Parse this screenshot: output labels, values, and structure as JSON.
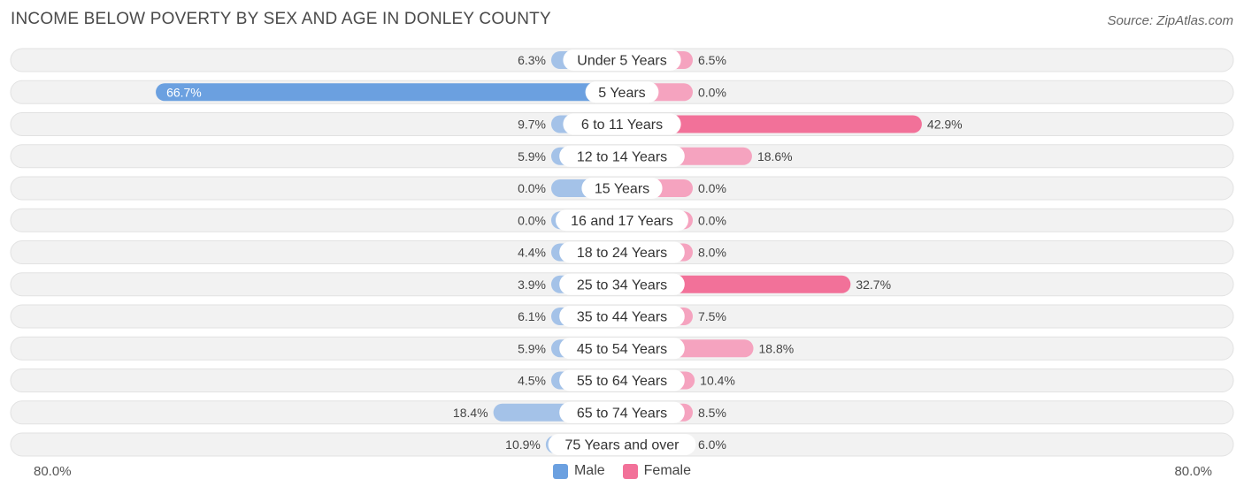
{
  "chart_data": {
    "type": "bar",
    "orientation": "horizontal-diverging",
    "title": "INCOME BELOW POVERTY BY SEX AND AGE IN DONLEY COUNTY",
    "source": "Source: ZipAtlas.com",
    "axis_min_label": "80.0%",
    "axis_max_label": "80.0%",
    "xlim": [
      -80,
      80
    ],
    "categories": [
      "Under 5 Years",
      "5 Years",
      "6 to 11 Years",
      "12 to 14 Years",
      "15 Years",
      "16 and 17 Years",
      "18 to 24 Years",
      "25 to 34 Years",
      "35 to 44 Years",
      "45 to 54 Years",
      "55 to 64 Years",
      "65 to 74 Years",
      "75 Years and over"
    ],
    "series": [
      {
        "name": "Male",
        "color": "#a4c2e8",
        "strong_color": "#6ba0e0",
        "values": [
          6.3,
          66.7,
          9.7,
          5.9,
          0.0,
          0.0,
          4.4,
          3.9,
          6.1,
          5.9,
          4.5,
          18.4,
          10.9
        ],
        "labels": [
          "6.3%",
          "66.7%",
          "9.7%",
          "5.9%",
          "0.0%",
          "0.0%",
          "4.4%",
          "3.9%",
          "6.1%",
          "5.9%",
          "4.5%",
          "18.4%",
          "10.9%"
        ]
      },
      {
        "name": "Female",
        "color": "#f5a3bf",
        "strong_color": "#f27199",
        "values": [
          6.5,
          0.0,
          42.9,
          18.6,
          0.0,
          0.0,
          8.0,
          32.7,
          7.5,
          18.8,
          10.4,
          8.5,
          6.0
        ],
        "labels": [
          "6.5%",
          "0.0%",
          "42.9%",
          "18.6%",
          "0.0%",
          "0.0%",
          "8.0%",
          "32.7%",
          "7.5%",
          "18.8%",
          "10.4%",
          "8.5%",
          "6.0%"
        ]
      }
    ]
  },
  "legend": {
    "male": "Male",
    "female": "Female",
    "male_color": "#6ba0e0",
    "female_color": "#f27199"
  }
}
